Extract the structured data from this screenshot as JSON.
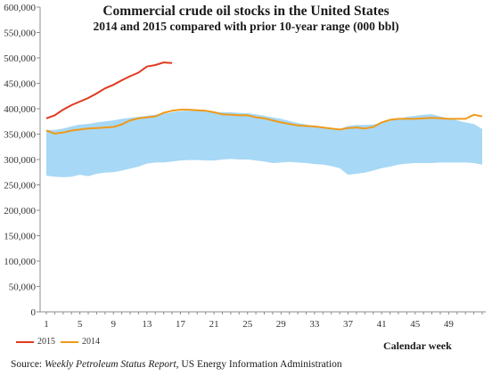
{
  "chart_data": {
    "type": "line",
    "title": "Commercial crude oil stocks in the United States",
    "subtitle": "2014 and 2015 compared with prior 10-year range (000 bbl)",
    "xlabel": "Calendar week",
    "ylabel": "",
    "ylim": [
      0,
      600000
    ],
    "yticks": [
      "0",
      "50,000",
      "100,000",
      "150,000",
      "200,000",
      "250,000",
      "300,000",
      "350,000",
      "400,000",
      "450,000",
      "500,000",
      "550,000",
      "600,000"
    ],
    "xticks": [
      "1",
      "5",
      "9",
      "13",
      "17",
      "21",
      "25",
      "29",
      "33",
      "37",
      "41",
      "45",
      "49"
    ],
    "x_range": [
      1,
      53
    ],
    "range_band": {
      "weeks": [
        1,
        2,
        3,
        4,
        5,
        6,
        7,
        8,
        9,
        10,
        11,
        12,
        13,
        14,
        15,
        16,
        17,
        18,
        19,
        20,
        21,
        22,
        23,
        24,
        25,
        26,
        27,
        28,
        29,
        30,
        31,
        32,
        33,
        34,
        35,
        36,
        37,
        38,
        39,
        40,
        41,
        42,
        43,
        44,
        45,
        46,
        47,
        48,
        49,
        50,
        51,
        52,
        53
      ],
      "min": [
        268000,
        266000,
        265000,
        266000,
        270000,
        267000,
        272000,
        274000,
        275000,
        278000,
        282000,
        286000,
        292000,
        294000,
        294000,
        296000,
        298000,
        299000,
        299000,
        298000,
        298000,
        300000,
        301000,
        300000,
        300000,
        298000,
        296000,
        293000,
        294000,
        295000,
        294000,
        293000,
        291000,
        290000,
        287000,
        283000,
        270000,
        272000,
        274000,
        278000,
        283000,
        286000,
        290000,
        292000,
        293000,
        293000,
        293000,
        294000,
        294000,
        294000,
        294000,
        293000,
        290000
      ],
      "max": [
        358000,
        358000,
        361000,
        365000,
        369000,
        370000,
        373000,
        375000,
        377000,
        380000,
        382000,
        384000,
        386000,
        388000,
        390000,
        393000,
        395000,
        396000,
        396000,
        395000,
        394000,
        393000,
        393000,
        392000,
        391000,
        389000,
        386000,
        383000,
        380000,
        376000,
        372000,
        369000,
        366000,
        363000,
        361000,
        360000,
        366000,
        368000,
        368000,
        369000,
        372000,
        376000,
        380000,
        384000,
        386000,
        388000,
        389000,
        385000,
        381000,
        377000,
        373000,
        370000,
        360000
      ]
    },
    "series": [
      {
        "name": "2015",
        "color": "#e03a1e",
        "weeks": [
          1,
          2,
          3,
          4,
          5,
          6,
          7,
          8,
          9,
          10,
          11,
          12,
          13,
          14,
          15,
          16
        ],
        "values": [
          381000,
          387000,
          398000,
          407000,
          414000,
          421000,
          430000,
          440000,
          447000,
          456000,
          464000,
          471000,
          483000,
          486000,
          491000,
          490000
        ]
      },
      {
        "name": "2014",
        "color": "#ef9a1a",
        "weeks": [
          1,
          2,
          3,
          4,
          5,
          6,
          7,
          8,
          9,
          10,
          11,
          12,
          13,
          14,
          15,
          16,
          17,
          18,
          19,
          20,
          21,
          22,
          23,
          24,
          25,
          26,
          27,
          28,
          29,
          30,
          31,
          32,
          33,
          34,
          35,
          36,
          37,
          38,
          39,
          40,
          41,
          42,
          43,
          44,
          45,
          46,
          47,
          48,
          49,
          50,
          51,
          52,
          53
        ],
        "values": [
          357000,
          351000,
          353000,
          357000,
          359000,
          361000,
          362000,
          363000,
          364000,
          369000,
          377000,
          381000,
          383000,
          385000,
          392000,
          396000,
          398000,
          398000,
          397000,
          396000,
          393000,
          389000,
          388000,
          387000,
          387000,
          383000,
          381000,
          377000,
          373000,
          370000,
          367000,
          366000,
          365000,
          363000,
          361000,
          359000,
          362000,
          363000,
          361000,
          364000,
          373000,
          378000,
          380000,
          380000,
          380000,
          381000,
          382000,
          381000,
          380000,
          380000,
          380000,
          388000,
          385000
        ]
      }
    ],
    "band_color": "#a7d8f6",
    "grid": false,
    "legend_position": "bottom-left"
  },
  "source": {
    "prefix": "Source: ",
    "italic": "Weekly Petroleum Status Report",
    "suffix": ", US Energy Information Administration"
  }
}
